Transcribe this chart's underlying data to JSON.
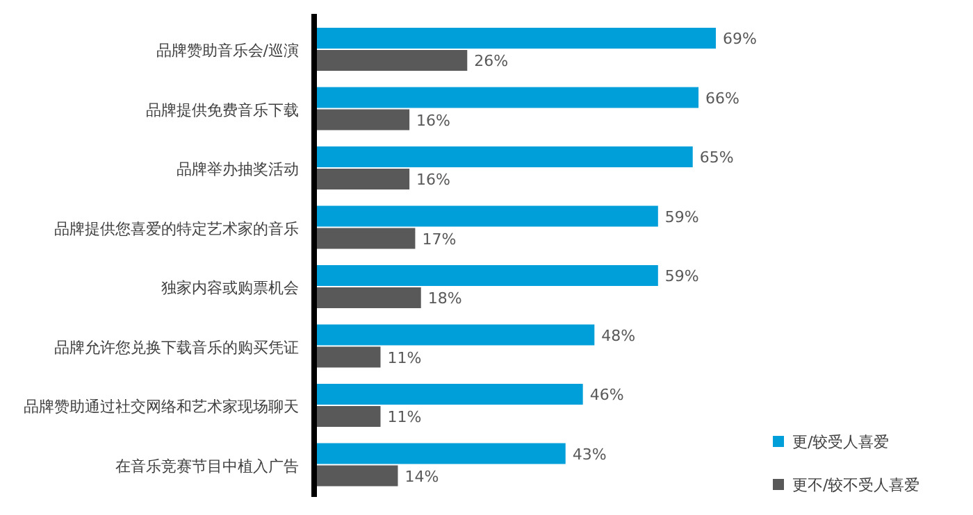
{
  "chart_data": {
    "type": "bar",
    "orientation": "horizontal",
    "legend": "bottom right",
    "categories": [
      "品牌赞助音乐会/巡演",
      "品牌提供免费音乐下载",
      "品牌举办抽奖活动",
      "品牌提供您喜爱的特定艺术家的音乐",
      "独家内容或购票机会",
      "品牌允许您兑换下载音乐的购买凭证",
      "品牌赞助通过社交网络和艺术家现场聊天",
      "在音乐竞赛节目中植入广告"
    ],
    "series": [
      {
        "name": "更/较受人喜爱",
        "color": "#009fda",
        "values": [
          69,
          66,
          65,
          59,
          59,
          48,
          46,
          43
        ],
        "value_labels": [
          "69%",
          "66%",
          "65%",
          "59%",
          "59%",
          "48%",
          "46%",
          "43%"
        ]
      },
      {
        "name": "更不/较不受人喜爱",
        "color": "#595959",
        "values": [
          26,
          16,
          16,
          17,
          18,
          11,
          11,
          14
        ],
        "value_labels": [
          "26%",
          "16%",
          "16%",
          "17%",
          "18%",
          "11%",
          "11%",
          "14%"
        ]
      }
    ]
  }
}
